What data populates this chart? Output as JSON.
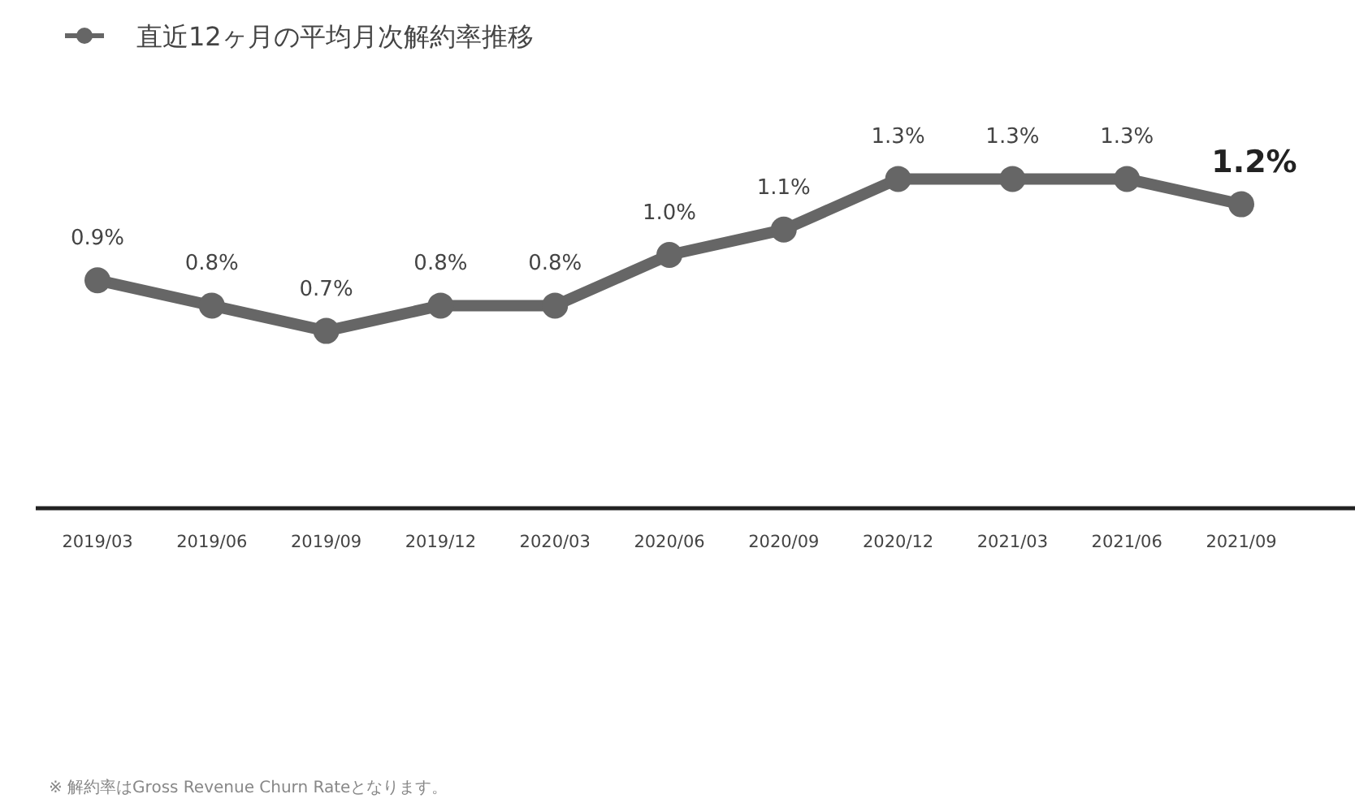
{
  "chart_data": {
    "type": "line",
    "categories": [
      "2019/03",
      "2019/06",
      "2019/09",
      "2019/12",
      "2020/03",
      "2020/06",
      "2020/09",
      "2020/12",
      "2021/03",
      "2021/06",
      "2021/09"
    ],
    "series": [
      {
        "name": "直近12ヶ月の平均月次解約率推移",
        "color": "#666666",
        "values": [
          0.9,
          0.8,
          0.7,
          0.8,
          0.8,
          1.0,
          1.1,
          1.3,
          1.3,
          1.3,
          1.2
        ],
        "value_labels": [
          "0.9%",
          "0.8%",
          "0.7%",
          "0.8%",
          "0.8%",
          "1.0%",
          "1.1%",
          "1.3%",
          "1.3%",
          "1.3%",
          "1.2%"
        ]
      }
    ],
    "legend": "top left",
    "marker": "circle",
    "line_style": "solid",
    "annotations": [
      "※ 解約率はGross Revenue Churn Rateとなります。"
    ]
  }
}
